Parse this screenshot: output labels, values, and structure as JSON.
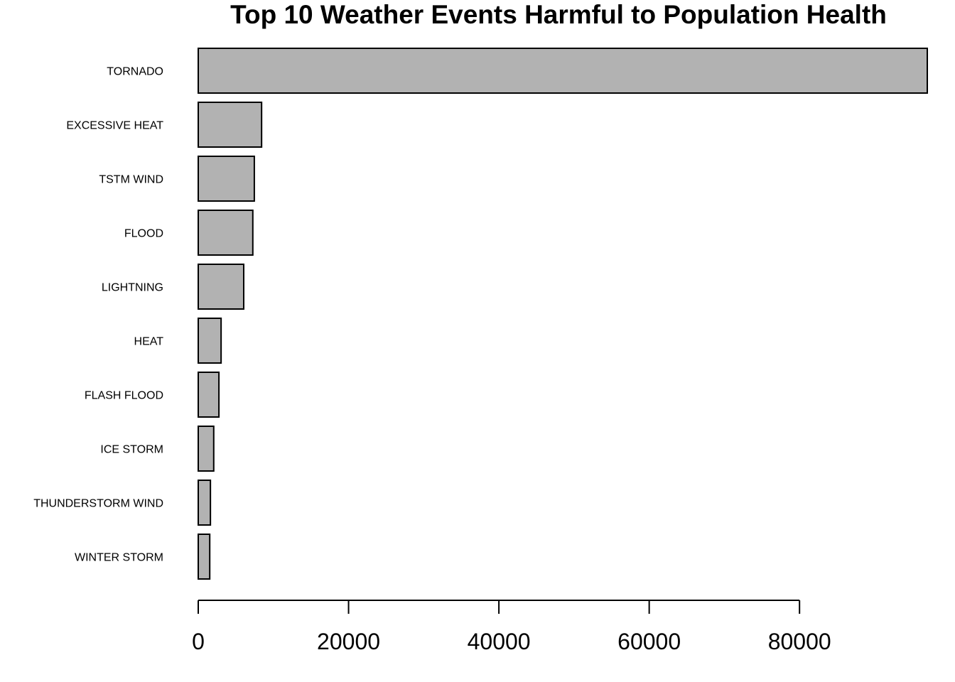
{
  "chart_data": {
    "type": "bar",
    "orientation": "horizontal",
    "title": "Top 10 Weather Events Harmful to Population Health",
    "xlabel": "",
    "ylabel": "",
    "categories": [
      "TORNADO",
      "EXCESSIVE HEAT",
      "TSTM WIND",
      "FLOOD",
      "LIGHTNING",
      "HEAT",
      "FLASH FLOOD",
      "ICE STORM",
      "THUNDERSTORM WIND",
      "WINTER STORM"
    ],
    "values": [
      97000,
      8430,
      7460,
      7260,
      6050,
      3040,
      2750,
      2060,
      1620,
      1530
    ],
    "xlim": [
      0,
      97000
    ],
    "x_ticks": [
      0,
      20000,
      40000,
      60000,
      80000
    ],
    "x_tick_labels": [
      "0",
      "20000",
      "40000",
      "60000",
      "80000"
    ],
    "bar_fill": "#b2b2b2",
    "bar_stroke": "#000000",
    "grid": false,
    "legend": "none"
  }
}
